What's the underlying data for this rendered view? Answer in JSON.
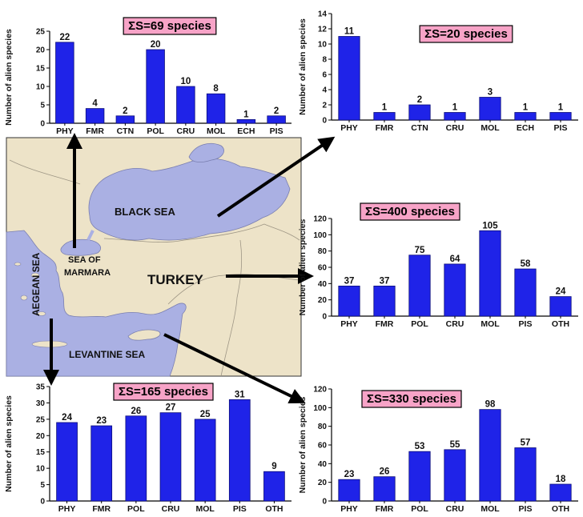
{
  "colors": {
    "bar": "#1f23e8",
    "bar_edge": "#0b0d7a",
    "sea": "#aab0e3",
    "land": "#ede3c8",
    "title_box": "#f7a3c7",
    "axis_text": "#111111"
  },
  "map": {
    "labels": {
      "black_sea": "BLACK SEA",
      "marmara_1": "SEA OF",
      "marmara_2": "MARMARA",
      "turkey": "TURKEY",
      "aegean": "AEGEAN SEA",
      "levantine": "LEVANTINE SEA"
    }
  },
  "chart_data": [
    {
      "id": "marmara",
      "type": "bar",
      "title": "ΣS=69 species",
      "ylabel": "Number of alien species",
      "ylim": [
        0,
        25
      ],
      "yticks": [
        0,
        5,
        10,
        15,
        20,
        25
      ],
      "categories": [
        "PHY",
        "FMR",
        "CTN",
        "POL",
        "CRU",
        "MOL",
        "ECH",
        "PIS"
      ],
      "values": [
        22,
        4,
        2,
        20,
        10,
        8,
        1,
        2
      ]
    },
    {
      "id": "black_sea",
      "type": "bar",
      "title": "ΣS=20 species",
      "ylabel": "Number of alien species",
      "ylim": [
        0,
        14
      ],
      "yticks": [
        0,
        2,
        4,
        6,
        8,
        10,
        12,
        14
      ],
      "categories": [
        "PHY",
        "FMR",
        "CTN",
        "CRU",
        "MOL",
        "ECH",
        "PIS"
      ],
      "values": [
        11,
        1,
        2,
        1,
        3,
        1,
        1
      ]
    },
    {
      "id": "turkey",
      "type": "bar",
      "title": "ΣS=400 species",
      "ylabel": "Number of alien species",
      "ylim": [
        0,
        120
      ],
      "yticks": [
        0,
        20,
        40,
        60,
        80,
        100,
        120
      ],
      "categories": [
        "PHY",
        "FMR",
        "POL",
        "CRU",
        "MOL",
        "PIS",
        "OTH"
      ],
      "values": [
        37,
        37,
        75,
        64,
        105,
        58,
        24
      ]
    },
    {
      "id": "aegean",
      "type": "bar",
      "title": "ΣS=165 species",
      "ylabel": "Number of alien species",
      "ylim": [
        0,
        35
      ],
      "yticks": [
        0,
        5,
        10,
        15,
        20,
        25,
        30,
        35
      ],
      "categories": [
        "PHY",
        "FMR",
        "POL",
        "CRU",
        "MOL",
        "PIS",
        "OTH"
      ],
      "values": [
        24,
        23,
        26,
        27,
        25,
        31,
        9
      ]
    },
    {
      "id": "levantine",
      "type": "bar",
      "title": "ΣS=330 species",
      "ylabel": "Number of alien species",
      "ylim": [
        0,
        120
      ],
      "yticks": [
        0,
        20,
        40,
        60,
        80,
        100,
        120
      ],
      "categories": [
        "PHY",
        "FMR",
        "POL",
        "CRU",
        "MOL",
        "PIS",
        "OTH"
      ],
      "values": [
        23,
        26,
        53,
        55,
        98,
        57,
        18
      ]
    }
  ]
}
